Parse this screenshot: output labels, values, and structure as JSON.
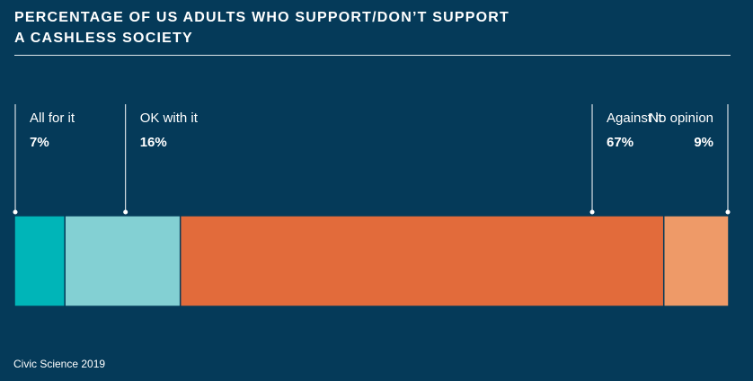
{
  "title_lines": [
    "PERCENTAGE OF US ADULTS WHO SUPPORT/DON’T SUPPORT",
    "A CASHLESS SOCIETY"
  ],
  "source": "Civic Science 2019",
  "chart_data": {
    "type": "bar",
    "orientation": "horizontal-stacked",
    "title": "PERCENTAGE OF US ADULTS WHO SUPPORT/DON’T SUPPORT A CASHLESS SOCIETY",
    "categories": [
      "All for it",
      "OK with it",
      "Against it",
      "No opinion"
    ],
    "values": [
      7,
      16,
      67,
      9
    ],
    "value_labels": [
      "7%",
      "16%",
      "67%",
      "9%"
    ],
    "colors": [
      "#00b5b8",
      "#83d0d3",
      "#e26b3b",
      "#ee9a68"
    ],
    "xlabel": "",
    "ylabel": "",
    "grid": false,
    "legend": "none"
  }
}
